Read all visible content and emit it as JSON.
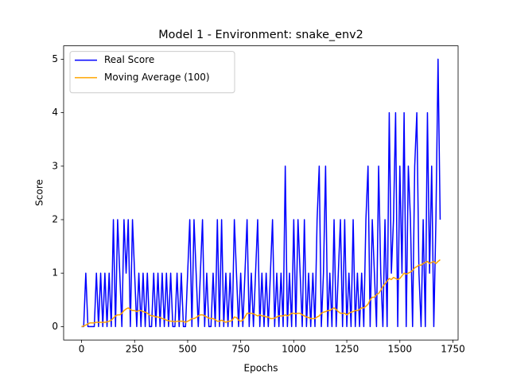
{
  "chart_data": {
    "type": "line",
    "title": "Model 1 - Environment: snake_env2",
    "x_label": "Epochs",
    "y_label": "Score",
    "x": [
      0,
      10,
      20,
      30,
      40,
      50,
      60,
      70,
      80,
      90,
      100,
      110,
      120,
      130,
      140,
      150,
      160,
      170,
      180,
      190,
      200,
      210,
      220,
      230,
      240,
      250,
      260,
      270,
      280,
      290,
      300,
      310,
      320,
      330,
      340,
      350,
      360,
      370,
      380,
      390,
      400,
      410,
      420,
      430,
      440,
      450,
      460,
      470,
      480,
      490,
      500,
      510,
      520,
      530,
      540,
      550,
      560,
      570,
      580,
      590,
      600,
      610,
      620,
      630,
      640,
      650,
      660,
      670,
      680,
      690,
      700,
      710,
      720,
      730,
      740,
      750,
      760,
      770,
      780,
      790,
      800,
      810,
      820,
      830,
      840,
      850,
      860,
      870,
      880,
      890,
      900,
      910,
      920,
      930,
      940,
      950,
      960,
      970,
      980,
      990,
      1000,
      1010,
      1020,
      1030,
      1040,
      1050,
      1060,
      1070,
      1080,
      1090,
      1100,
      1110,
      1120,
      1130,
      1140,
      1150,
      1160,
      1170,
      1180,
      1190,
      1200,
      1210,
      1220,
      1230,
      1240,
      1250,
      1260,
      1270,
      1280,
      1290,
      1300,
      1310,
      1320,
      1330,
      1340,
      1350,
      1360,
      1370,
      1380,
      1390,
      1400,
      1410,
      1420,
      1430,
      1440,
      1450,
      1460,
      1470,
      1480,
      1490,
      1500,
      1510,
      1520,
      1530,
      1540,
      1550,
      1560,
      1570,
      1580,
      1590,
      1600,
      1610,
      1620,
      1630,
      1640,
      1650,
      1660,
      1670,
      1680,
      1690
    ],
    "series": [
      {
        "name": "Real Score",
        "color": "#0000ff",
        "values": [
          0,
          0,
          1,
          0,
          0,
          0,
          0,
          1,
          0,
          1,
          0,
          1,
          0,
          1,
          0,
          2,
          0,
          2,
          1,
          0,
          2,
          1,
          2,
          0,
          2,
          1,
          0,
          1,
          0,
          1,
          0,
          1,
          0,
          0,
          1,
          0,
          1,
          0,
          1,
          0,
          1,
          0,
          1,
          0,
          0,
          1,
          0,
          1,
          0,
          0,
          1,
          2,
          0,
          2,
          1,
          0,
          1,
          2,
          0,
          1,
          0,
          0,
          1,
          0,
          2,
          0,
          2,
          0,
          1,
          0,
          1,
          0,
          2,
          1,
          0,
          1,
          0,
          1,
          2,
          0,
          1,
          0,
          1,
          2,
          0,
          1,
          0,
          1,
          0,
          1,
          2,
          0,
          1,
          0,
          1,
          0,
          3,
          0,
          1,
          0,
          2,
          0,
          2,
          1,
          0,
          2,
          0,
          1,
          0,
          1,
          0,
          2,
          3,
          0,
          1,
          3,
          0,
          1,
          0,
          2,
          0,
          1,
          2,
          0,
          2,
          0,
          1,
          0,
          2,
          0,
          1,
          0,
          1,
          0,
          2,
          3,
          0,
          2,
          1,
          0,
          3,
          1,
          0,
          2,
          0,
          4,
          1,
          2,
          4,
          0,
          3,
          1,
          4,
          0,
          3,
          2,
          0,
          3,
          4,
          1,
          0,
          2,
          0,
          4,
          1,
          3,
          0,
          2,
          5,
          2
        ]
      },
      {
        "name": "Moving Average (100)",
        "color": "#ffa500",
        "values": [
          0,
          0.01,
          0.03,
          0.05,
          0.07,
          0.07,
          0.07,
          0.08,
          0.08,
          0.08,
          0.08,
          0.08,
          0.09,
          0.1,
          0.12,
          0.16,
          0.2,
          0.22,
          0.22,
          0.25,
          0.3,
          0.33,
          0.35,
          0.32,
          0.3,
          0.3,
          0.28,
          0.3,
          0.3,
          0.28,
          0.27,
          0.25,
          0.22,
          0.2,
          0.2,
          0.18,
          0.18,
          0.17,
          0.15,
          0.14,
          0.12,
          0.11,
          0.1,
          0.1,
          0.09,
          0.1,
          0.1,
          0.1,
          0.1,
          0.08,
          0.1,
          0.12,
          0.15,
          0.15,
          0.17,
          0.2,
          0.22,
          0.22,
          0.2,
          0.18,
          0.16,
          0.15,
          0.15,
          0.13,
          0.1,
          0.1,
          0.12,
          0.1,
          0.08,
          0.1,
          0.1,
          0.12,
          0.18,
          0.17,
          0.12,
          0.1,
          0.12,
          0.18,
          0.25,
          0.25,
          0.25,
          0.24,
          0.22,
          0.2,
          0.22,
          0.2,
          0.2,
          0.18,
          0.18,
          0.15,
          0.15,
          0.16,
          0.18,
          0.2,
          0.2,
          0.2,
          0.22,
          0.2,
          0.22,
          0.25,
          0.25,
          0.24,
          0.25,
          0.25,
          0.22,
          0.2,
          0.18,
          0.17,
          0.15,
          0.15,
          0.15,
          0.18,
          0.2,
          0.25,
          0.27,
          0.28,
          0.3,
          0.3,
          0.33,
          0.35,
          0.32,
          0.28,
          0.25,
          0.25,
          0.25,
          0.22,
          0.25,
          0.27,
          0.28,
          0.3,
          0.3,
          0.32,
          0.35,
          0.35,
          0.38,
          0.42,
          0.5,
          0.55,
          0.55,
          0.6,
          0.62,
          0.68,
          0.75,
          0.8,
          0.85,
          0.9,
          0.88,
          0.92,
          0.9,
          0.88,
          0.9,
          0.95,
          1.0,
          0.98,
          1.0,
          1.02,
          1.05,
          1.1,
          1.12,
          1.15,
          1.15,
          1.18,
          1.2,
          1.22,
          1.18,
          1.2,
          1.22,
          1.18,
          1.22,
          1.25
        ]
      }
    ],
    "xlim": [
      -84.5,
      1774.5
    ],
    "ylim": [
      -0.25,
      5.25
    ],
    "xticks": [
      0,
      250,
      500,
      750,
      1000,
      1250,
      1500,
      1750
    ],
    "yticks": [
      0,
      1,
      2,
      3,
      4,
      5
    ],
    "legend": "upper left",
    "grid": false
  }
}
